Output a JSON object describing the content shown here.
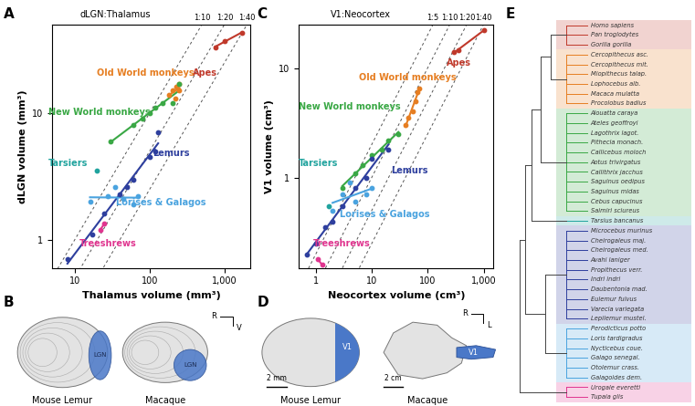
{
  "chart_data": [
    {
      "panel": "A",
      "type": "scatter",
      "title": "dLGN:Thalamus",
      "x_label": "Thalamus volume (mm³)",
      "y_label": "dLGN volume (mm³)",
      "log": true,
      "xlim": [
        5,
        2200
      ],
      "ylim": [
        0.6,
        50
      ],
      "xticks": [
        10,
        100,
        {
          "value": 1000,
          "label": "1,000"
        }
      ],
      "yticks": [
        1,
        10
      ],
      "reference_lines": [
        {
          "label": "1:10",
          "ratio": 10
        },
        {
          "label": "1:20",
          "ratio": 20
        },
        {
          "label": "1:40",
          "ratio": 40
        }
      ],
      "series": [
        {
          "name": "Apes",
          "color": "#c0392b",
          "x": [
            750,
            1000,
            1700
          ],
          "values": [
            33,
            37,
            43
          ]
        },
        {
          "name": "Old World monkeys",
          "color": "#e67e22",
          "x": [
            180,
            200,
            220,
            230,
            250,
            250
          ],
          "values": [
            14,
            15,
            13,
            16,
            15,
            17
          ]
        },
        {
          "name": "New World monkeys",
          "color": "#3aa845",
          "x": [
            30,
            60,
            80,
            100,
            120,
            150,
            200,
            250
          ],
          "values": [
            6,
            8,
            9,
            10,
            11,
            12,
            12,
            17
          ]
        },
        {
          "name": "Tarsiers",
          "color": "#20a39e",
          "x": [
            20
          ],
          "values": [
            3.5
          ]
        },
        {
          "name": "Lemurs",
          "color": "#2e3f9e",
          "x": [
            8,
            17,
            25,
            40,
            50,
            60,
            100,
            120,
            130
          ],
          "values": [
            0.7,
            1.1,
            1.6,
            2.3,
            2.6,
            3,
            4.5,
            5,
            7
          ]
        },
        {
          "name": "Lorises & Galagos",
          "color": "#4aa3df",
          "x": [
            16,
            28,
            35,
            45,
            60,
            70
          ],
          "values": [
            2,
            2.2,
            2.6,
            2.1,
            1.9,
            2.2
          ]
        },
        {
          "name": "Treeshrews",
          "color": "#e0358f",
          "x": [
            22,
            25
          ],
          "values": [
            1.2,
            1.35
          ]
        }
      ]
    },
    {
      "panel": "C",
      "type": "scatter",
      "title": "V1:Neocortex",
      "x_label": "Neocortex volume (cm³)",
      "y_label": "V1 volume (cm³)",
      "log": true,
      "xlim": [
        0.5,
        1500
      ],
      "ylim": [
        0.15,
        25
      ],
      "xticks": [
        1,
        10,
        100,
        {
          "value": 1000,
          "label": "1,000"
        }
      ],
      "yticks": [
        1,
        10
      ],
      "reference_lines": [
        {
          "label": "1:5",
          "ratio": 5
        },
        {
          "label": "1:10",
          "ratio": 10
        },
        {
          "label": "1:20",
          "ratio": 20
        },
        {
          "label": "1:40",
          "ratio": 40
        }
      ],
      "series": [
        {
          "name": "Apes",
          "color": "#c0392b",
          "x": [
            300,
            350,
            1000
          ],
          "values": [
            14,
            14.5,
            22
          ]
        },
        {
          "name": "Old World monkeys",
          "color": "#e67e22",
          "x": [
            40,
            45,
            55,
            60,
            65,
            70
          ],
          "values": [
            3,
            3.5,
            4,
            5,
            6,
            6.5
          ]
        },
        {
          "name": "New World monkeys",
          "color": "#3aa845",
          "x": [
            3,
            5,
            7,
            10,
            15,
            20,
            30
          ],
          "values": [
            0.8,
            1.1,
            1.3,
            1.6,
            1.8,
            2.2,
            2.5
          ]
        },
        {
          "name": "Tarsiers",
          "color": "#20a39e",
          "x": [
            1.7
          ],
          "values": [
            0.55
          ]
        },
        {
          "name": "Lemurs",
          "color": "#2e3f9e",
          "x": [
            0.7,
            1,
            1.5,
            2,
            3,
            5,
            8,
            10,
            20
          ],
          "values": [
            0.2,
            0.25,
            0.35,
            0.4,
            0.55,
            0.8,
            1,
            1.5,
            1.8
          ]
        },
        {
          "name": "Lorises & Galagos",
          "color": "#4aa3df",
          "x": [
            2,
            3,
            4,
            5,
            8,
            10
          ],
          "values": [
            0.5,
            0.7,
            0.9,
            0.6,
            0.7,
            0.8
          ]
        },
        {
          "name": "Treeshrews",
          "color": "#e0358f",
          "x": [
            1.1,
            1.3
          ],
          "values": [
            0.18,
            0.16
          ]
        }
      ]
    }
  ],
  "panel_B": {
    "panel": "B",
    "orientation_labels": [
      "R",
      "V"
    ],
    "color": "#4a78c8",
    "brains": [
      {
        "name": "Mouse Lemur",
        "region": "LGN"
      },
      {
        "name": "Macaque",
        "region": "LGN"
      }
    ]
  },
  "panel_D": {
    "panel": "D",
    "orientation_labels": [
      "R",
      "L"
    ],
    "color": "#4a78c8",
    "maps": [
      {
        "name": "Mouse Lemur",
        "region": "V1",
        "scale_bar": "2 mm"
      },
      {
        "name": "Macaque",
        "region": "V1",
        "scale_bar": "2 cm"
      }
    ]
  },
  "panel_E": {
    "panel": "E",
    "clades": [
      {
        "color": "#c0392b",
        "species": [
          "Homo sapiens",
          "Pan troglodytes",
          "Gorilla gorilla"
        ]
      },
      {
        "color": "#e67e22",
        "species": [
          "Cercopithecus asc.",
          "Cercopithecus mit.",
          "Miopithecus talap.",
          "Lophocebus alb.",
          "Macaca mulatta",
          "Procolobus badius"
        ]
      },
      {
        "color": "#3aa845",
        "species": [
          "Alouatta caraya",
          "Ateles geoffroyi",
          "Lagothrix lagot.",
          "Pithecia monach.",
          "Callicebus moloch",
          "Aotus trivirgatus",
          "Callithrix jacchus",
          "Saguinus oedipus",
          "Saguinus midas",
          "Cebus capucinus",
          "Saimiri sciureus"
        ]
      },
      {
        "color": "#20a39e",
        "species": [
          "Tarsius bancanus"
        ]
      },
      {
        "color": "#2e3f9e",
        "species": [
          "Microcebus murinus",
          "Cheirogaleus maj.",
          "Cheirogaleus med.",
          "Avahi laniger",
          "Propithecus verr.",
          "Indri indri",
          "Daubentonia mad.",
          "Eulemur fulvus",
          "Varecia variegata",
          "Lepilemur mustel."
        ]
      },
      {
        "color": "#4aa3df",
        "species": [
          "Perodicticus potto",
          "Loris tardigradus",
          "Nycticebus coue.",
          "Galago senegal.",
          "Otolemur crass.",
          "Galagoides dem."
        ]
      },
      {
        "color": "#e0358f",
        "species": [
          "Urogale everetti",
          "Tupaia glis"
        ]
      }
    ]
  }
}
